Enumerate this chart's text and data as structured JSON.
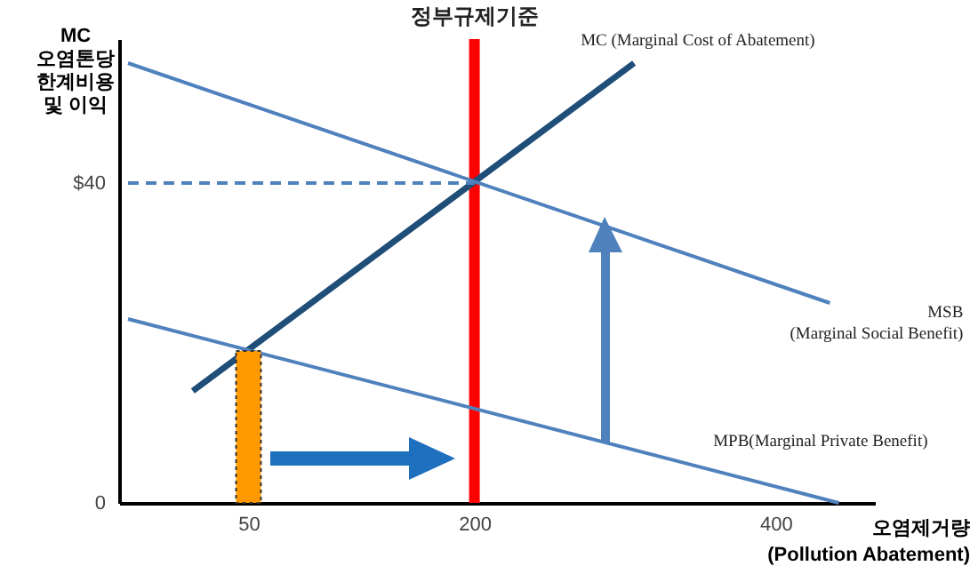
{
  "chart_data": {
    "type": "line",
    "xlabel": "오염제거량\n(Pollution Abatement)",
    "ylabel": "MC\n오염톤당\n한계비용\n및 이익",
    "xlim": [
      -30,
      460
    ],
    "ylim": [
      0,
      58
    ],
    "xticks": [
      50,
      200,
      400
    ],
    "yticks": [
      0,
      {
        "value": 40,
        "label": "$40"
      }
    ],
    "grid": false,
    "series": [
      {
        "name": "MC (Marginal Cost of Abatement)",
        "color": "#1f4e79",
        "x": [
          13,
          306
        ],
        "values": [
          14,
          55
        ]
      },
      {
        "name": "MSB\n(Marginal Social Benefit)",
        "color": "#4f81bd",
        "x": [
          -30,
          436
        ],
        "values": [
          55,
          25
        ]
      },
      {
        "name": "MPB(Marginal Private Benefit)",
        "color": "#4f81bd",
        "x": [
          -30,
          442
        ],
        "values": [
          23,
          0
        ]
      },
      {
        "color": "#4f81bd",
        "line_style": "dashed",
        "x": [
          -30,
          200
        ],
        "values": [
          40,
          40
        ]
      },
      {
        "type": "bar",
        "color": "#ff9900",
        "x": [
          50
        ],
        "values": [
          19
        ]
      }
    ],
    "ref_lines": [
      {
        "axis": "x",
        "value": 200,
        "label": "정부규제기준",
        "color": "#ff0000"
      }
    ]
  }
}
